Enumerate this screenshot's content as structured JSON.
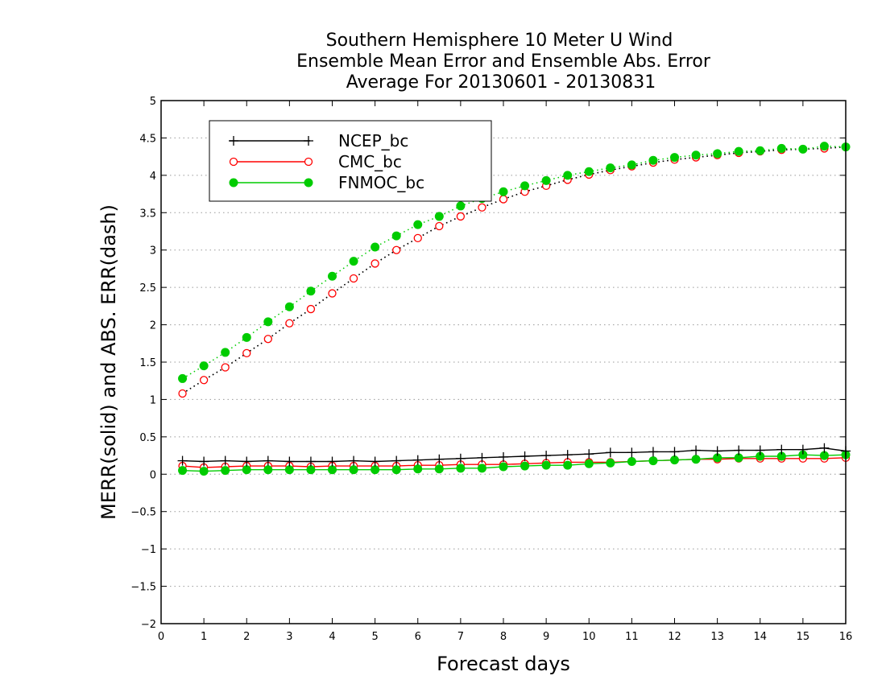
{
  "chart_data": {
    "type": "line",
    "title": [
      "Southern Hemisphere 10 Meter U Wind",
      "Ensemble Mean Error and Ensemble Abs. Error",
      "Average For 20130601 - 20130831"
    ],
    "xlabel": "Forecast days",
    "ylabel": "MERR(solid) and ABS. ERR(dash)",
    "xlim": [
      0,
      16
    ],
    "ylim": [
      -2,
      5
    ],
    "xticks": [
      0,
      1,
      2,
      3,
      4,
      5,
      6,
      7,
      8,
      9,
      10,
      11,
      12,
      13,
      14,
      15,
      16
    ],
    "yticks": [
      -2,
      -1.5,
      -1,
      -0.5,
      0,
      0.5,
      1,
      1.5,
      2,
      2.5,
      3,
      3.5,
      4,
      4.5,
      5
    ],
    "ytick_labels": [
      "−2",
      "−1.5",
      "−1",
      "−0.5",
      "0",
      "0.5",
      "1",
      "1.5",
      "2",
      "2.5",
      "3",
      "3.5",
      "4",
      "4.5",
      "5"
    ],
    "grid": "horizontal-dotted",
    "legend_position": "top-left",
    "x": [
      0.5,
      1,
      1.5,
      2,
      2.5,
      3,
      3.5,
      4,
      4.5,
      5,
      5.5,
      6,
      6.5,
      7,
      7.5,
      8,
      8.5,
      9,
      9.5,
      10,
      10.5,
      11,
      11.5,
      12,
      12.5,
      13,
      13.5,
      14,
      14.5,
      15,
      15.5,
      16
    ],
    "series": [
      {
        "name": "NCEP_bc",
        "color": "#000000",
        "marker": "plus",
        "merr": [
          0.18,
          0.17,
          0.18,
          0.17,
          0.18,
          0.17,
          0.17,
          0.17,
          0.18,
          0.17,
          0.18,
          0.19,
          0.2,
          0.21,
          0.22,
          0.23,
          0.24,
          0.25,
          0.26,
          0.27,
          0.29,
          0.29,
          0.3,
          0.3,
          0.32,
          0.31,
          0.32,
          0.32,
          0.33,
          0.33,
          0.35,
          0.31
        ],
        "abs_err": [
          1.08,
          1.26,
          1.43,
          1.62,
          1.81,
          2.02,
          2.21,
          2.42,
          2.62,
          2.82,
          3.0,
          3.16,
          3.32,
          3.45,
          3.57,
          3.68,
          3.78,
          3.86,
          3.94,
          4.01,
          4.07,
          4.12,
          4.17,
          4.21,
          4.24,
          4.27,
          4.3,
          4.32,
          4.34,
          4.35,
          4.36,
          4.38
        ]
      },
      {
        "name": "CMC_bc",
        "color": "#ff0000",
        "marker": "open-circle",
        "merr": [
          0.11,
          0.09,
          0.1,
          0.11,
          0.11,
          0.11,
          0.1,
          0.11,
          0.11,
          0.11,
          0.11,
          0.12,
          0.12,
          0.13,
          0.13,
          0.13,
          0.14,
          0.15,
          0.16,
          0.16,
          0.16,
          0.17,
          0.18,
          0.19,
          0.2,
          0.2,
          0.21,
          0.21,
          0.21,
          0.21,
          0.21,
          0.22
        ],
        "abs_err": [
          1.08,
          1.26,
          1.43,
          1.62,
          1.81,
          2.02,
          2.21,
          2.42,
          2.62,
          2.82,
          3.0,
          3.16,
          3.32,
          3.45,
          3.57,
          3.68,
          3.78,
          3.86,
          3.94,
          4.01,
          4.07,
          4.12,
          4.17,
          4.21,
          4.24,
          4.27,
          4.3,
          4.32,
          4.34,
          4.35,
          4.36,
          4.38
        ]
      },
      {
        "name": "FNMOC_bc",
        "color": "#00cc00",
        "marker": "filled-circle",
        "merr": [
          0.05,
          0.04,
          0.05,
          0.06,
          0.06,
          0.06,
          0.06,
          0.06,
          0.06,
          0.06,
          0.06,
          0.07,
          0.07,
          0.08,
          0.08,
          0.1,
          0.11,
          0.12,
          0.12,
          0.14,
          0.15,
          0.17,
          0.18,
          0.19,
          0.2,
          0.22,
          0.22,
          0.24,
          0.24,
          0.26,
          0.25,
          0.26
        ],
        "abs_err": [
          1.28,
          1.45,
          1.63,
          1.83,
          2.04,
          2.24,
          2.45,
          2.65,
          2.85,
          3.04,
          3.19,
          3.34,
          3.45,
          3.59,
          3.69,
          3.78,
          3.86,
          3.93,
          4.0,
          4.05,
          4.1,
          4.14,
          4.2,
          4.24,
          4.27,
          4.29,
          4.32,
          4.33,
          4.36,
          4.35,
          4.39,
          4.38
        ]
      }
    ]
  }
}
